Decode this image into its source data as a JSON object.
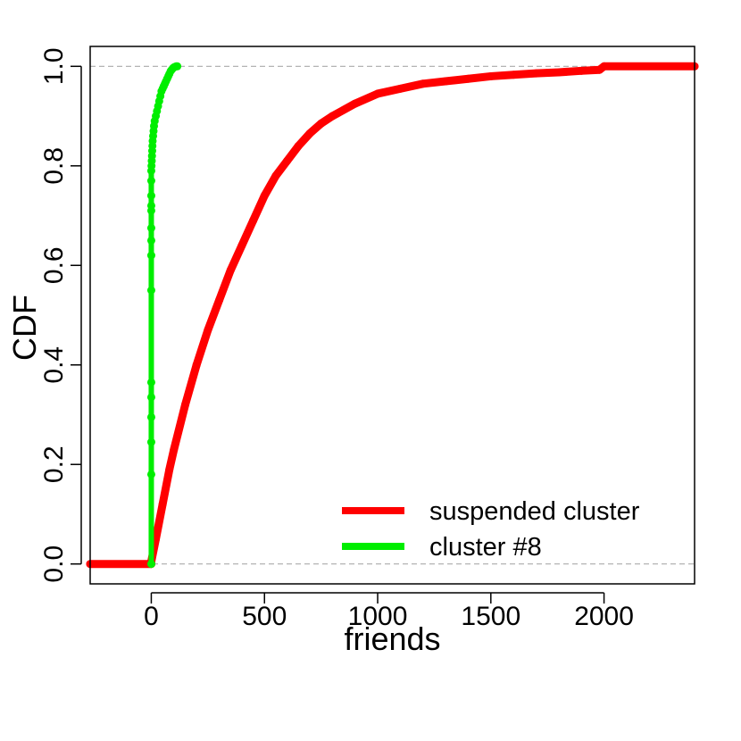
{
  "chart_data": {
    "type": "line",
    "xlabel": "friends",
    "ylabel": "CDF",
    "xlim": [
      -270,
      2400
    ],
    "ylim": [
      -0.04,
      1.04
    ],
    "x_ticks": [
      0,
      500,
      1000,
      1500,
      2000
    ],
    "x_tick_labels": [
      "0",
      "500",
      "1000",
      "1500",
      "2000"
    ],
    "y_ticks": [
      0.0,
      0.2,
      0.4,
      0.6,
      0.8,
      1.0
    ],
    "y_tick_labels": [
      "0.0",
      "0.2",
      "0.4",
      "0.6",
      "0.8",
      "1.0"
    ],
    "reference_lines": [
      0,
      1
    ],
    "grid": false,
    "legend_position": "bottom-right",
    "series": [
      {
        "name": "suspended cluster",
        "color": "#ff0000",
        "x": [
          -270,
          0,
          0,
          20,
          50,
          80,
          100,
          150,
          200,
          250,
          300,
          350,
          400,
          450,
          500,
          550,
          600,
          650,
          700,
          750,
          800,
          900,
          1000,
          1100,
          1200,
          1300,
          1400,
          1500,
          1600,
          1700,
          1800,
          1900,
          1980,
          2000,
          2400
        ],
        "y": [
          0.0,
          0.0,
          0.005,
          0.05,
          0.12,
          0.19,
          0.23,
          0.32,
          0.4,
          0.47,
          0.53,
          0.59,
          0.64,
          0.69,
          0.74,
          0.78,
          0.81,
          0.84,
          0.865,
          0.885,
          0.9,
          0.925,
          0.945,
          0.955,
          0.965,
          0.97,
          0.975,
          0.98,
          0.983,
          0.986,
          0.988,
          0.991,
          0.993,
          1.0,
          1.0
        ]
      },
      {
        "name": "cluster #8",
        "color": "#00ee00",
        "x": [
          0,
          0,
          0,
          0,
          0,
          0,
          0,
          0,
          0,
          0,
          0,
          0,
          0,
          0,
          0,
          1,
          2,
          3,
          4,
          5,
          6,
          8,
          10,
          12,
          15,
          20,
          25,
          30,
          35,
          40,
          45,
          50,
          55,
          60,
          65,
          70,
          75,
          80,
          85,
          90,
          95,
          100,
          105,
          110,
          115
        ],
        "y": [
          0.0,
          0.18,
          0.245,
          0.295,
          0.335,
          0.365,
          0.55,
          0.62,
          0.65,
          0.675,
          0.71,
          0.72,
          0.74,
          0.77,
          0.79,
          0.8,
          0.81,
          0.82,
          0.83,
          0.84,
          0.85,
          0.86,
          0.87,
          0.88,
          0.89,
          0.9,
          0.91,
          0.92,
          0.93,
          0.94,
          0.95,
          0.955,
          0.96,
          0.965,
          0.97,
          0.975,
          0.98,
          0.985,
          0.99,
          0.993,
          0.996,
          0.998,
          0.999,
          1.0,
          1.0
        ]
      }
    ]
  }
}
